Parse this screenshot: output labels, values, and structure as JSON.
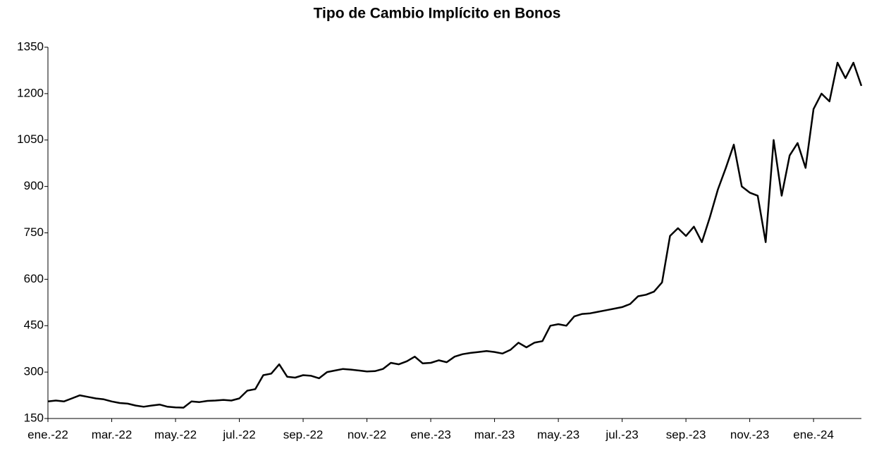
{
  "chart_data": {
    "type": "line",
    "title": "Tipo de Cambio Implícito en Bonos",
    "categories": [
      "ene.-22",
      null,
      null,
      null,
      null,
      null,
      null,
      null,
      "mar.-22",
      null,
      null,
      null,
      null,
      null,
      null,
      null,
      "may.-22",
      null,
      null,
      null,
      null,
      null,
      null,
      null,
      "jul.-22",
      null,
      null,
      null,
      null,
      null,
      null,
      null,
      "sep.-22",
      null,
      null,
      null,
      null,
      null,
      null,
      null,
      "nov.-22",
      null,
      null,
      null,
      null,
      null,
      null,
      null,
      "ene.-23",
      null,
      null,
      null,
      null,
      null,
      null,
      null,
      "mar.-23",
      null,
      null,
      null,
      null,
      null,
      null,
      null,
      "may.-23",
      null,
      null,
      null,
      null,
      null,
      null,
      null,
      "jul.-23",
      null,
      null,
      null,
      null,
      null,
      null,
      null,
      "sep.-23",
      null,
      null,
      null,
      null,
      null,
      null,
      null,
      "nov.-23",
      null,
      null,
      null,
      null,
      null,
      null,
      null,
      "ene.-24",
      null,
      null,
      null,
      null,
      null,
      null
    ],
    "values": [
      205,
      208,
      205,
      215,
      225,
      220,
      215,
      212,
      205,
      200,
      198,
      192,
      188,
      192,
      195,
      188,
      186,
      185,
      205,
      203,
      207,
      208,
      210,
      208,
      215,
      240,
      245,
      290,
      295,
      325,
      285,
      282,
      290,
      288,
      280,
      300,
      305,
      310,
      308,
      305,
      302,
      303,
      310,
      330,
      325,
      335,
      350,
      328,
      330,
      338,
      332,
      350,
      358,
      362,
      365,
      368,
      365,
      360,
      372,
      395,
      380,
      395,
      400,
      450,
      455,
      450,
      480,
      488,
      490,
      495,
      500,
      505,
      510,
      520,
      545,
      550,
      560,
      590,
      740,
      765,
      740,
      770,
      720,
      800,
      890,
      960,
      1035,
      900,
      880,
      870,
      720,
      1050,
      870,
      1000,
      1040,
      960,
      1150,
      1200,
      1175,
      1300,
      1250,
      1300,
      1225
    ],
    "color": "#000000",
    "ylim": [
      150,
      1350
    ],
    "yticks": [
      150,
      300,
      450,
      600,
      750,
      900,
      1050,
      1200,
      1350
    ]
  }
}
